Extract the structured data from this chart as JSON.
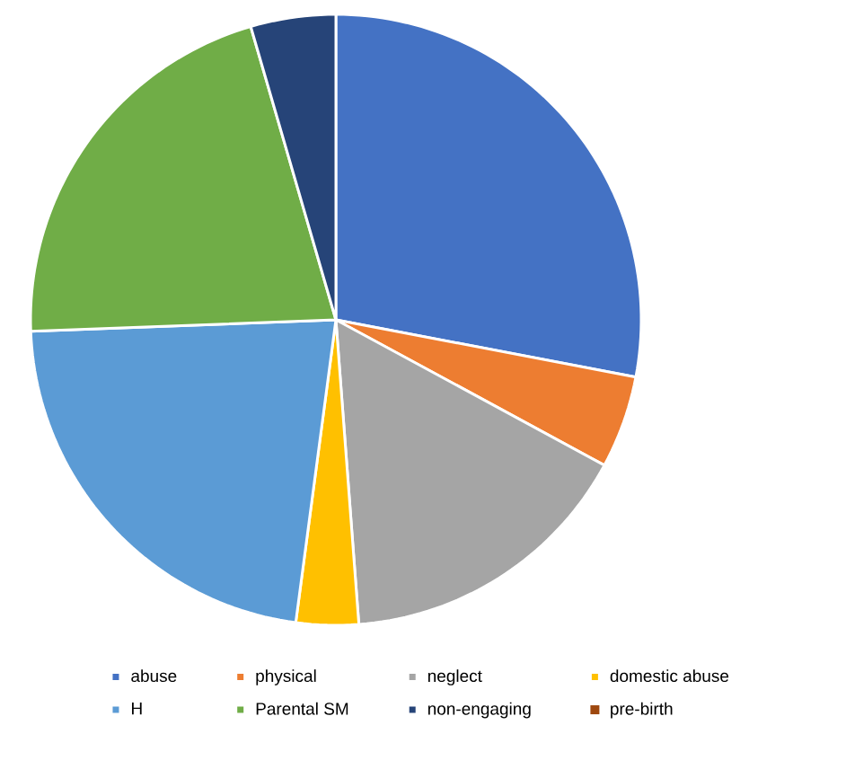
{
  "chart_data": {
    "type": "pie",
    "categories": [
      "abuse",
      "physical",
      "neglect",
      "domestic abuse",
      "H",
      "Parental SM",
      "non-engaging",
      "pre-birth"
    ],
    "values": [
      28,
      4.9,
      15.9,
      3.3,
      22.3,
      21.1,
      4.5,
      0
    ],
    "colors": [
      "#4472c4",
      "#ed7d31",
      "#a5a5a5",
      "#ffc000",
      "#5b9bd5",
      "#70ad47",
      "#264478",
      "#9e480e"
    ],
    "legend": "bottom"
  }
}
